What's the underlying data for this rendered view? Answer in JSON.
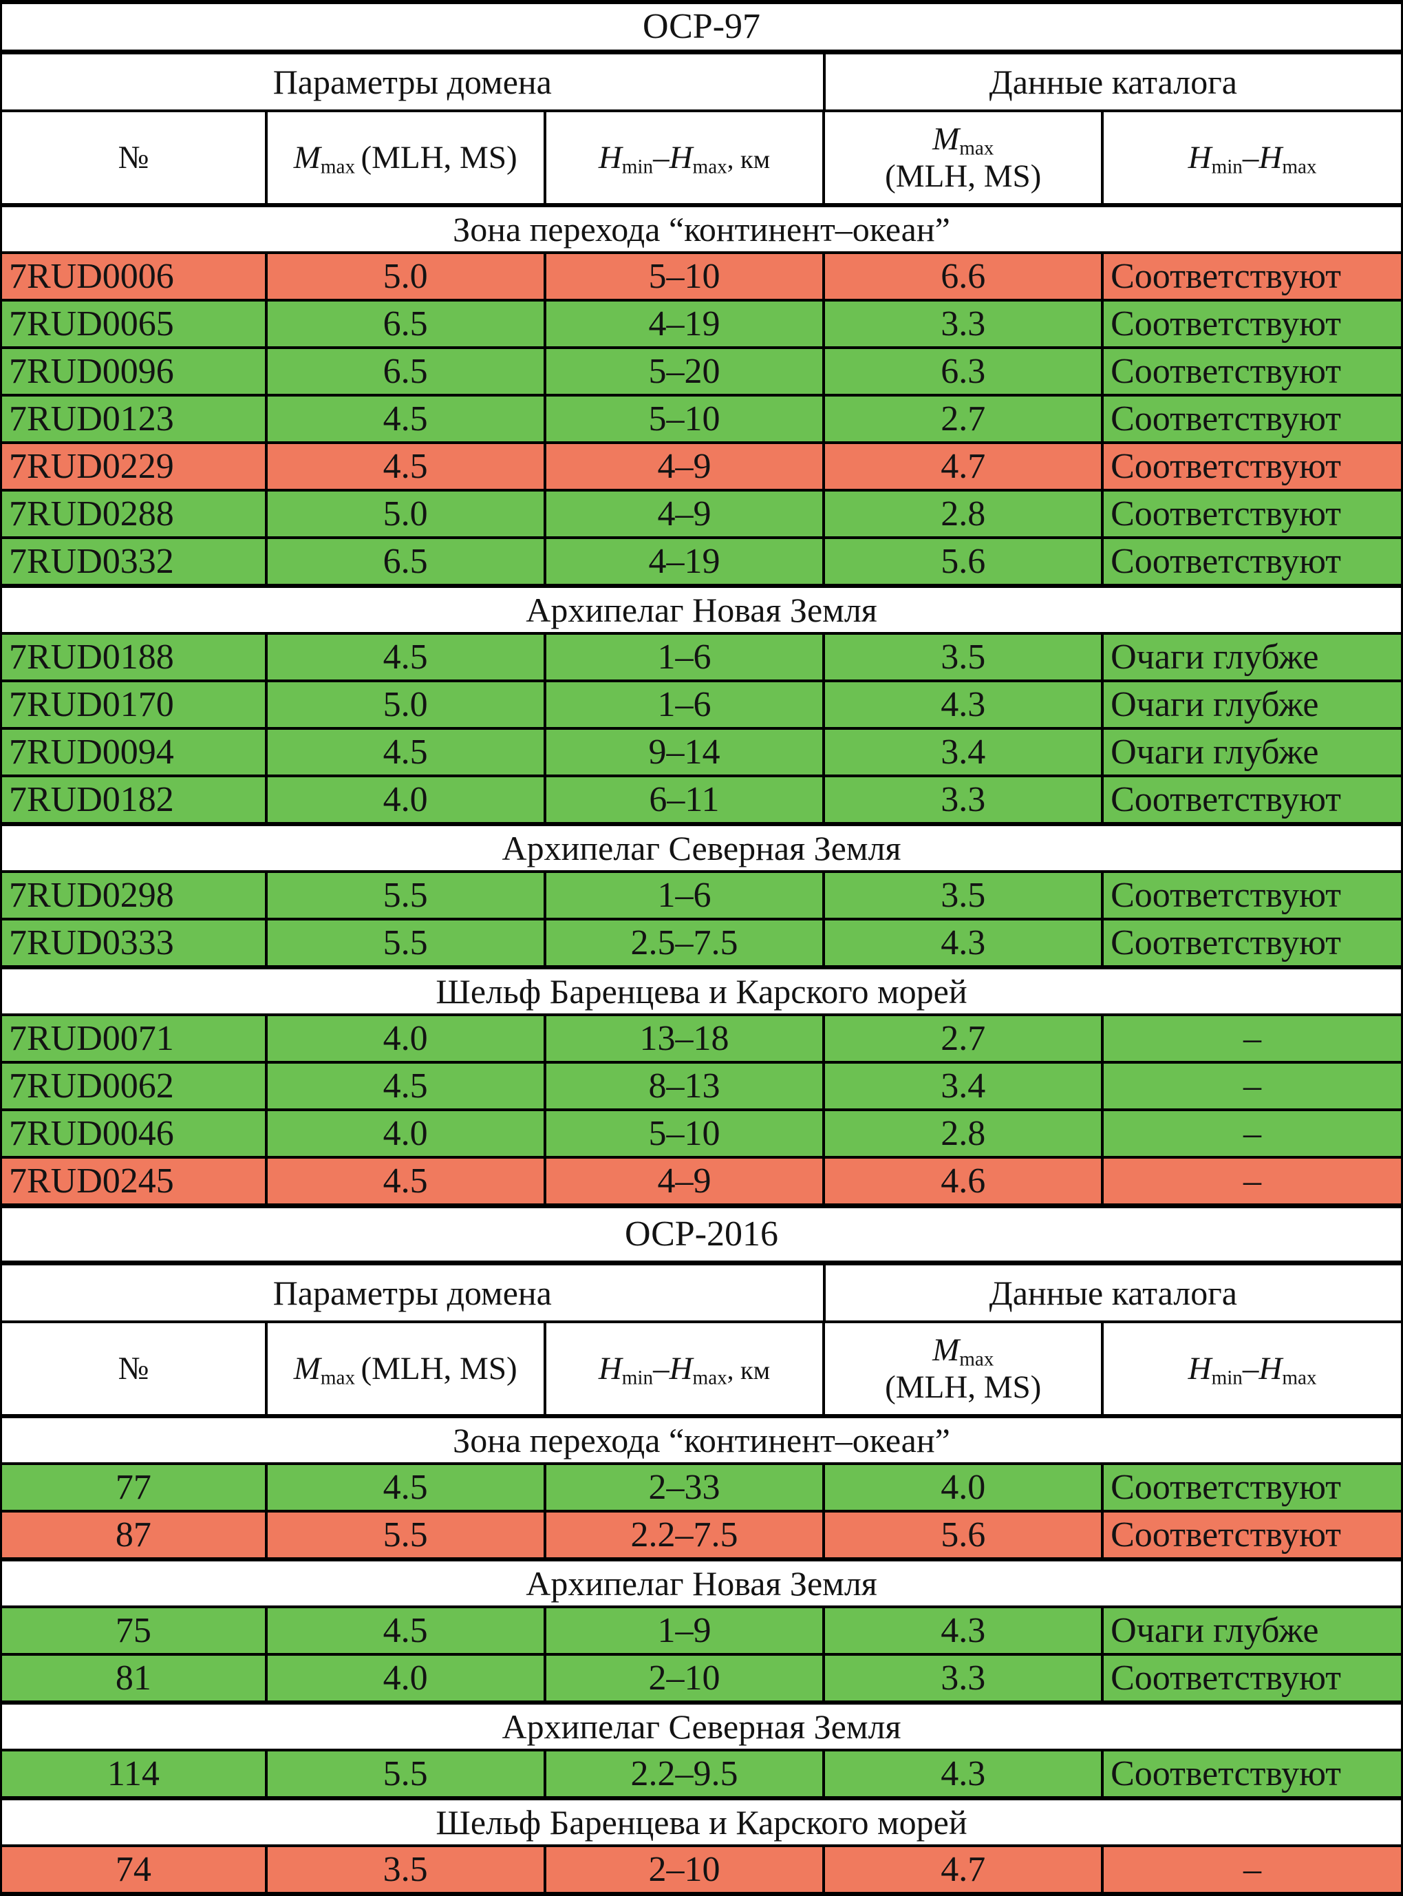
{
  "palette": {
    "green": "#6cc152",
    "red": "#f07a5e",
    "border": "#000000",
    "background": "#ffffff"
  },
  "header_labels": {
    "group_domain": "Параметры домена",
    "group_catalog": "Данные каталога",
    "no": "№",
    "m_sym": "M",
    "sub_max": "max",
    "m_args": "(MLH, MS)",
    "h_sym": "H",
    "sub_min": "min",
    "range_dash": "–",
    "km_suffix": ", км"
  },
  "tables": [
    {
      "title": "ОСР-97",
      "number_align": "left",
      "sections": [
        {
          "title": "Зона перехода “континент–океан”",
          "rows": [
            {
              "status": "red",
              "cells": [
                "7RUD0006",
                "5.0",
                "5–10",
                "6.6",
                "Соответствуют"
              ]
            },
            {
              "status": "green",
              "cells": [
                "7RUD0065",
                "6.5",
                "4–19",
                "3.3",
                "Соответствуют"
              ]
            },
            {
              "status": "green",
              "cells": [
                "7RUD0096",
                "6.5",
                "5–20",
                "6.3",
                "Соответствуют"
              ]
            },
            {
              "status": "green",
              "cells": [
                "7RUD0123",
                "4.5",
                "5–10",
                "2.7",
                "Соответствуют"
              ]
            },
            {
              "status": "red",
              "cells": [
                "7RUD0229",
                "4.5",
                "4–9",
                "4.7",
                "Соответствуют"
              ]
            },
            {
              "status": "green",
              "cells": [
                "7RUD0288",
                "5.0",
                "4–9",
                "2.8",
                "Соответствуют"
              ]
            },
            {
              "status": "green",
              "cells": [
                "7RUD0332",
                "6.5",
                "4–19",
                "5.6",
                "Соответствуют"
              ]
            }
          ]
        },
        {
          "title": "Архипелаг Новая Земля",
          "rows": [
            {
              "status": "green",
              "cells": [
                "7RUD0188",
                "4.5",
                "1–6",
                "3.5",
                "Очаги глубже"
              ]
            },
            {
              "status": "green",
              "cells": [
                "7RUD0170",
                "5.0",
                "1–6",
                "4.3",
                "Очаги глубже"
              ]
            },
            {
              "status": "green",
              "cells": [
                "7RUD0094",
                "4.5",
                "9–14",
                "3.4",
                "Очаги глубже"
              ]
            },
            {
              "status": "green",
              "cells": [
                "7RUD0182",
                "4.0",
                "6–11",
                "3.3",
                "Соответствуют"
              ]
            }
          ]
        },
        {
          "title": "Архипелаг Северная Земля",
          "rows": [
            {
              "status": "green",
              "cells": [
                "7RUD0298",
                "5.5",
                "1–6",
                "3.5",
                "Соответствуют"
              ]
            },
            {
              "status": "green",
              "cells": [
                "7RUD0333",
                "5.5",
                "2.5–7.5",
                "4.3",
                "Соответствуют"
              ]
            }
          ]
        },
        {
          "title": "Шельф Баренцева и Карского морей",
          "rows": [
            {
              "status": "green",
              "cells": [
                "7RUD0071",
                "4.0",
                "13–18",
                "2.7",
                "–"
              ]
            },
            {
              "status": "green",
              "cells": [
                "7RUD0062",
                "4.5",
                "8–13",
                "3.4",
                "–"
              ]
            },
            {
              "status": "green",
              "cells": [
                "7RUD0046",
                "4.0",
                "5–10",
                "2.8",
                "–"
              ]
            },
            {
              "status": "red",
              "cells": [
                "7RUD0245",
                "4.5",
                "4–9",
                "4.6",
                "–"
              ]
            }
          ]
        }
      ]
    },
    {
      "title": "ОСР-2016",
      "number_align": "center",
      "sections": [
        {
          "title": "Зона перехода “континент–океан”",
          "rows": [
            {
              "status": "green",
              "cells": [
                "77",
                "4.5",
                "2–33",
                "4.0",
                "Соответствуют"
              ]
            },
            {
              "status": "red",
              "cells": [
                "87",
                "5.5",
                "2.2–7.5",
                "5.6",
                "Соответствуют"
              ]
            }
          ]
        },
        {
          "title": "Архипелаг Новая Земля",
          "rows": [
            {
              "status": "green",
              "cells": [
                "75",
                "4.5",
                "1–9",
                "4.3",
                "Очаги глубже"
              ]
            },
            {
              "status": "green",
              "cells": [
                "81",
                "4.0",
                "2–10",
                "3.3",
                "Соответствуют"
              ]
            }
          ]
        },
        {
          "title": "Архипелаг Северная Земля",
          "rows": [
            {
              "status": "green",
              "cells": [
                "114",
                "5.5",
                "2.2–9.5",
                "4.3",
                "Соответствуют"
              ]
            }
          ]
        },
        {
          "title": "Шельф Баренцева и Карского морей",
          "rows": [
            {
              "status": "red",
              "cells": [
                "74",
                "3.5",
                "2–10",
                "4.7",
                "–"
              ]
            }
          ]
        }
      ]
    }
  ]
}
